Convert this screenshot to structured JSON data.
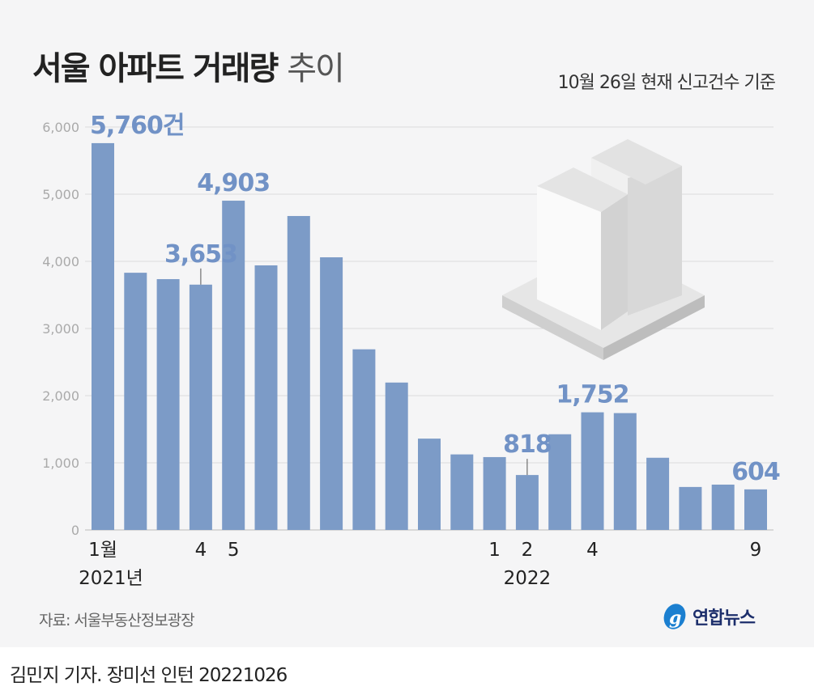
{
  "title": {
    "bold": "서울 아파트 거래량",
    "light": "추이"
  },
  "subtitle": "10월 26일 현재 신고건수 기준",
  "source": "자료: 서울부동산정보광장",
  "logo_text": "연합뉴스",
  "credit": "김민지 기자. 장미선 인턴  20221026",
  "colors": {
    "bar": "#7c9bc7",
    "label": "#7192c6",
    "background": "#f5f5f6"
  },
  "chart_data": {
    "type": "bar",
    "title": "서울 아파트 거래량 추이",
    "categories": [
      "2021-01",
      "2021-02",
      "2021-03",
      "2021-04",
      "2021-05",
      "2021-06",
      "2021-07",
      "2021-08",
      "2021-09",
      "2021-10",
      "2021-11",
      "2021-12",
      "2022-01",
      "2022-02",
      "2022-03",
      "2022-04",
      "2022-05",
      "2022-06",
      "2022-07",
      "2022-08",
      "2022-09"
    ],
    "values": [
      5760,
      3830,
      3735,
      3653,
      4903,
      3940,
      4675,
      4060,
      2690,
      2195,
      1360,
      1125,
      1085,
      818,
      1425,
      1752,
      1740,
      1075,
      640,
      675,
      604
    ],
    "x_tick_labels": [
      {
        "index": 0,
        "label": "1월",
        "sub": "2021년"
      },
      {
        "index": 3,
        "label": "4"
      },
      {
        "index": 4,
        "label": "5"
      },
      {
        "index": 12,
        "label": "1"
      },
      {
        "index": 13,
        "label": "2",
        "sub": "2022"
      },
      {
        "index": 15,
        "label": "4"
      },
      {
        "index": 20,
        "label": "9"
      }
    ],
    "data_labels": [
      {
        "index": 0,
        "text": "5,760건"
      },
      {
        "index": 3,
        "text": "3,653"
      },
      {
        "index": 4,
        "text": "4,903"
      },
      {
        "index": 13,
        "text": "818"
      },
      {
        "index": 15,
        "text": "1,752"
      },
      {
        "index": 20,
        "text": "604"
      }
    ],
    "yticks": [
      "0",
      "1,000",
      "2,000",
      "3,000",
      "4,000",
      "5,000",
      "6,000"
    ],
    "ylim": [
      0,
      6000
    ],
    "grid": true
  }
}
